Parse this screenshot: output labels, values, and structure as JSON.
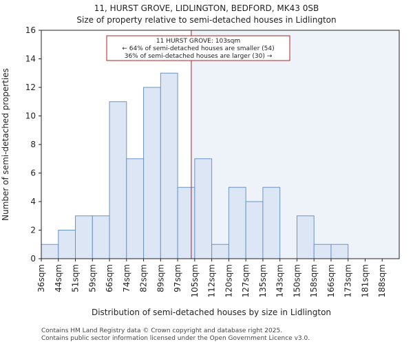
{
  "chart_data": {
    "type": "bar",
    "title": "11, HURST GROVE, LIDLINGTON, BEDFORD, MK43 0SB",
    "subtitle": "Size of property relative to semi-detached houses in Lidlington",
    "xlabel": "Distribution of semi-detached houses by size in Lidlington",
    "ylabel": "Number of semi-detached properties",
    "categories": [
      "36sqm",
      "44sqm",
      "51sqm",
      "59sqm",
      "66sqm",
      "74sqm",
      "82sqm",
      "89sqm",
      "97sqm",
      "105sqm",
      "112sqm",
      "120sqm",
      "127sqm",
      "135sqm",
      "143sqm",
      "150sqm",
      "158sqm",
      "166sqm",
      "173sqm",
      "181sqm",
      "188sqm"
    ],
    "values": [
      1,
      2,
      3,
      3,
      11,
      7,
      12,
      13,
      5,
      7,
      1,
      5,
      4,
      5,
      0,
      3,
      1,
      1,
      0,
      0,
      0
    ],
    "ylim": [
      0,
      16
    ],
    "yticks": [
      0,
      2,
      4,
      6,
      8,
      10,
      12,
      14,
      16
    ],
    "grid": false,
    "property_marker_bin": 8.8,
    "annotation": {
      "line1": "11 HURST GROVE: 103sqm",
      "line2": "← 64% of semi-detached houses are smaller (54)",
      "line3": "36% of semi-detached houses are larger (30) →"
    },
    "colors": {
      "bar_fill_left": "#dce6f4",
      "bar_stroke": "#6a93c9",
      "highlight_region": "#eef3fa",
      "marker_line": "#b22222",
      "annotation_border": "#b22222"
    }
  },
  "footer": {
    "line1": "Contains HM Land Registry data © Crown copyright and database right 2025.",
    "line2": "Contains public sector information licensed under the Open Government Licence v3.0."
  }
}
